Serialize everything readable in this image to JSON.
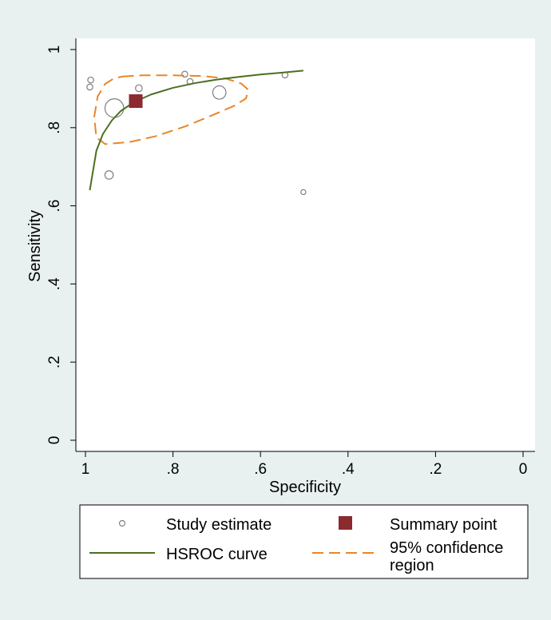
{
  "chart_data": {
    "type": "scatter",
    "title": "",
    "xlabel": "Specificity",
    "ylabel": "Sensitivity",
    "x_reversed": true,
    "xlim": [
      1,
      0
    ],
    "ylim": [
      0,
      1
    ],
    "x_ticks": [
      1,
      0.8,
      0.6,
      0.4,
      0.2,
      0
    ],
    "x_tick_labels": [
      "1",
      ".8",
      ".6",
      ".4",
      ".2",
      "0"
    ],
    "y_ticks": [
      0,
      0.2,
      0.4,
      0.6,
      0.8,
      1
    ],
    "y_tick_labels": [
      "0",
      ".2",
      ".4",
      ".6",
      ".8",
      "1"
    ],
    "grid": false,
    "legend_position": "bottom",
    "colors": {
      "page_background": "#e8f0f0",
      "plot_background": "#ffffff",
      "study": "#7f7f7f",
      "summary": "#8b2a2f",
      "hsroc": "#4c6f22",
      "confidence": "#e8862a"
    },
    "series": [
      {
        "name": "Study estimate",
        "kind": "bubble",
        "points": [
          {
            "x": 0.99,
            "y": 0.904,
            "size": 1
          },
          {
            "x": 0.988,
            "y": 0.922,
            "size": 1
          },
          {
            "x": 0.934,
            "y": 0.85,
            "size": 10
          },
          {
            "x": 0.946,
            "y": 0.679,
            "size": 2
          },
          {
            "x": 0.878,
            "y": 0.901,
            "size": 1.3
          },
          {
            "x": 0.773,
            "y": 0.937,
            "size": 1
          },
          {
            "x": 0.761,
            "y": 0.918,
            "size": 1
          },
          {
            "x": 0.694,
            "y": 0.89,
            "size": 5
          },
          {
            "x": 0.544,
            "y": 0.935,
            "size": 1
          },
          {
            "x": 0.502,
            "y": 0.635,
            "size": 0.7
          }
        ]
      },
      {
        "name": "Summary point",
        "kind": "point",
        "points": [
          {
            "x": 0.885,
            "y": 0.868
          }
        ]
      },
      {
        "name": "HSROC curve",
        "kind": "line",
        "x": [
          0.99,
          0.975,
          0.96,
          0.94,
          0.92,
          0.89,
          0.85,
          0.8,
          0.75,
          0.7,
          0.65,
          0.6,
          0.55,
          0.502
        ],
        "y": [
          0.64,
          0.741,
          0.784,
          0.818,
          0.842,
          0.865,
          0.885,
          0.902,
          0.914,
          0.923,
          0.93,
          0.936,
          0.941,
          0.946
        ]
      },
      {
        "name": "95% confidence region",
        "kind": "closed-dashed",
        "x": [
          0.915,
          0.87,
          0.8,
          0.73,
          0.68,
          0.644,
          0.628,
          0.633,
          0.66,
          0.71,
          0.77,
          0.84,
          0.9,
          0.955,
          0.975,
          0.98,
          0.972,
          0.955,
          0.935
        ],
        "y": [
          0.931,
          0.934,
          0.934,
          0.932,
          0.926,
          0.913,
          0.897,
          0.875,
          0.856,
          0.832,
          0.804,
          0.778,
          0.763,
          0.758,
          0.775,
          0.827,
          0.88,
          0.912,
          0.926
        ]
      }
    ],
    "legend": [
      {
        "label": "Study estimate",
        "kind": "study"
      },
      {
        "label": "Summary point",
        "kind": "summary"
      },
      {
        "label": "HSROC curve",
        "kind": "hsroc"
      },
      {
        "label_lines": [
          "95% confidence",
          "region"
        ],
        "kind": "confidence"
      }
    ]
  }
}
